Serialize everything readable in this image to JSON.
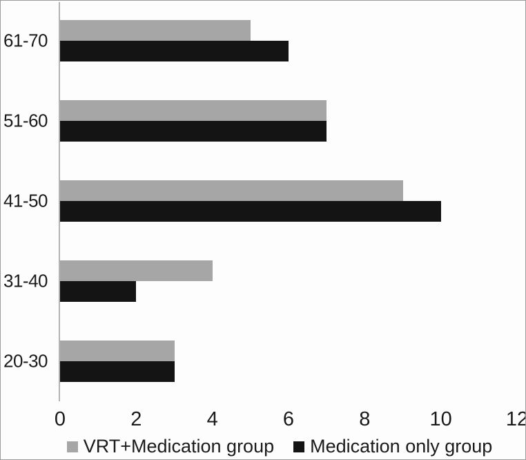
{
  "figure": {
    "background": "#fdfdfd",
    "border_color": "#9a9a9a",
    "text_color": "#1a1a1a"
  },
  "chart_data": {
    "type": "bar",
    "orientation": "horizontal",
    "title": "",
    "xlabel": "",
    "ylabel": "",
    "grid": false,
    "legend_position": "bottom",
    "axis_line_color": "#b3b3b3",
    "categories": [
      "61-70",
      "51-60",
      "41-50",
      "31-40",
      "20-30"
    ],
    "series": [
      {
        "name": "VRT+Medication group",
        "color": "#a6a6a6",
        "values": [
          5,
          7,
          9,
          4,
          3
        ]
      },
      {
        "name": "Medication only group",
        "color": "#141414",
        "values": [
          6,
          7,
          10,
          2,
          3
        ]
      }
    ],
    "x_ticks": [
      0,
      2,
      4,
      6,
      8,
      10,
      12
    ],
    "xlim": [
      0,
      12
    ]
  }
}
